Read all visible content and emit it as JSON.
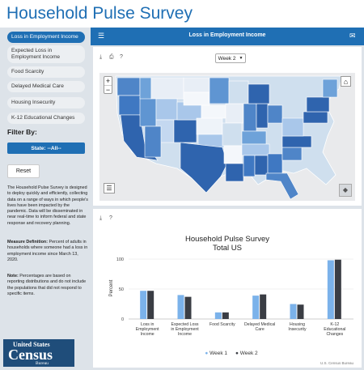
{
  "app": {
    "title": "Household Pulse Survey"
  },
  "sidebar": {
    "items": [
      {
        "label": "Loss in Employment Income",
        "active": true
      },
      {
        "label": "Expected Loss in Employment Income",
        "active": false
      },
      {
        "label": "Food Scarcity",
        "active": false
      },
      {
        "label": "Delayed Medical Care",
        "active": false
      },
      {
        "label": "Housing Insecurity",
        "active": false
      },
      {
        "label": "K-12 Educational Changes",
        "active": false
      }
    ],
    "filter_title": "Filter By:",
    "state_button": "State: --All--",
    "reset_button": "Reset",
    "description": "The Household Pulse Survey is designed to deploy quickly and efficiently, collecting data on a range of ways in which people's lives have been impacted by the pandemic. Data will be disseminated in near real-time to inform federal and state response and recovery planning.",
    "measure_label": "Measure Definition:",
    "measure_text": "Percent of adults in households where someone had a loss in employment income since March 13, 2020.",
    "note_label": "Note:",
    "note_text": "Percentages are based on reporting distributions and do not include the populations that did not respond to specific items.",
    "logo": {
      "line1": "United States",
      "line2": "Census",
      "line3": "Bureau"
    }
  },
  "topbar": {
    "title": "Loss in Employment Income"
  },
  "map": {
    "week_select": "Week 2",
    "zoom_in": "+",
    "zoom_out": "−"
  },
  "chart_data": {
    "type": "bar",
    "title": "Household Pulse Survey",
    "subtitle": "Total US",
    "ylabel": "Percent",
    "xlabel": "",
    "ylim": [
      0,
      100
    ],
    "yticks": [
      0,
      50,
      100
    ],
    "categories": [
      "Loss in Employment Income",
      "Expected Loss in Employment Income",
      "Food Scarcity",
      "Delayed Medical Care",
      "Housing Insecurity",
      "K-12 Educational Changes"
    ],
    "series": [
      {
        "name": "Week 1",
        "color": "#7bb2ea",
        "values": [
          47,
          40,
          11,
          39,
          25,
          98
        ]
      },
      {
        "name": "Week 2",
        "color": "#3a3d44",
        "values": [
          47,
          37,
          11,
          41,
          24,
          99
        ]
      }
    ],
    "credit": "U.S. Census Bureau"
  }
}
